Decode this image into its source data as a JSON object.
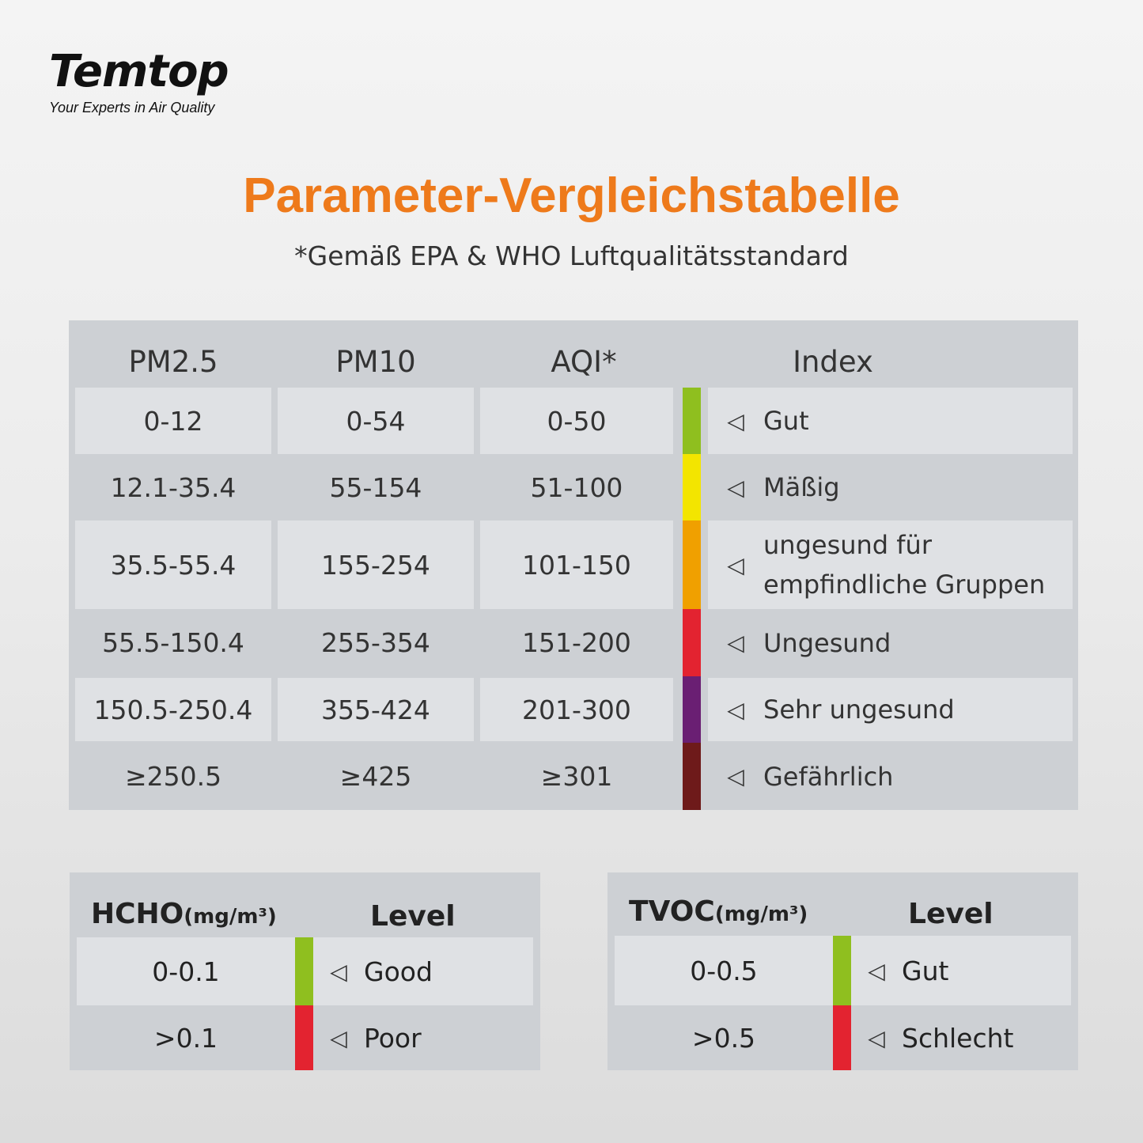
{
  "brand": {
    "logo": "Temtop",
    "tagline": "Your Experts in Air Quality"
  },
  "title": "Parameter-Vergleichstabelle",
  "subtitle": "*Gemäß EPA & WHO Luftqualitätsstandard",
  "main_table": {
    "headers": {
      "pm25": "PM2.5",
      "pm10": "PM10",
      "aqi": "AQI*",
      "index": "Index"
    },
    "rows": [
      {
        "pm25": "0-12",
        "pm10": "0-54",
        "aqi": "0-50",
        "label": "Gut",
        "color": "#8fbf1f"
      },
      {
        "pm25": "12.1-35.4",
        "pm10": "55-154",
        "aqi": "51-100",
        "label": "Mäßig",
        "color": "#f3e500"
      },
      {
        "pm25": "35.5-55.4",
        "pm10": "155-254",
        "aqi": "101-150",
        "label_line1": "ungesund für",
        "label_line2": "empfindliche Gruppen",
        "color": "#f0a000"
      },
      {
        "pm25": "55.5-150.4",
        "pm10": "255-354",
        "aqi": "151-200",
        "label": "Ungesund",
        "color": "#e32330"
      },
      {
        "pm25": "150.5-250.4",
        "pm10": "355-424",
        "aqi": "201-300",
        "label": "Sehr ungesund",
        "color": "#6a1f73"
      },
      {
        "pm25": "≥250.5",
        "pm10": "≥425",
        "aqi": "≥301",
        "label": "Gefährlich",
        "color": "#6e1a1a"
      }
    ]
  },
  "hcho_table": {
    "header_name": "HCHO",
    "header_unit": "(mg/m³)",
    "header_level": "Level",
    "rows": [
      {
        "value": "0-0.1",
        "label": "Good",
        "color": "#8fbf1f"
      },
      {
        "value": ">0.1",
        "label": "Poor",
        "color": "#e32330"
      }
    ]
  },
  "tvoc_table": {
    "header_name": "TVOC",
    "header_unit": "(mg/m³)",
    "header_level": "Level",
    "rows": [
      {
        "value": "0-0.5",
        "label": "Gut",
        "color": "#8fbf1f"
      },
      {
        "value": ">0.5",
        "label": "Schlecht",
        "color": "#e32330"
      }
    ]
  },
  "icons": {
    "arrow": "◁",
    "arrow_name": "triangle-left-icon"
  }
}
